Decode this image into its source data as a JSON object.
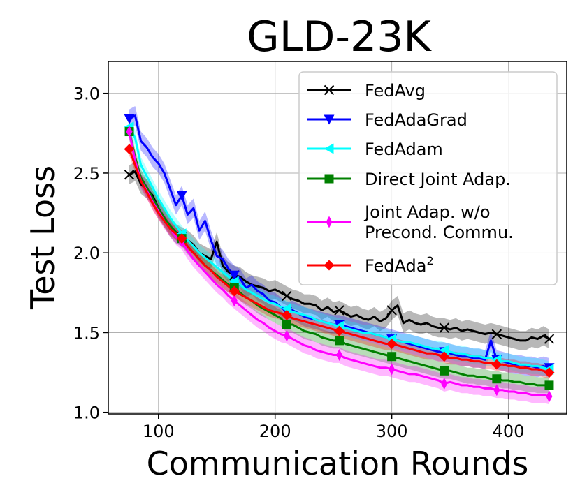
{
  "chart_data": {
    "type": "line",
    "title": "GLD-23K",
    "xlabel": "Communication Rounds",
    "ylabel": "Test Loss",
    "xlim": [
      57,
      450
    ],
    "ylim": [
      0.99,
      3.2
    ],
    "xticks": [
      100,
      200,
      300,
      400
    ],
    "yticks": [
      1.0,
      1.5,
      2.0,
      2.5,
      3.0
    ],
    "xtick_labels": [
      "100",
      "200",
      "300",
      "400"
    ],
    "ytick_labels": [
      "1.0",
      "1.5",
      "2.0",
      "2.5",
      "3.0"
    ],
    "grid": true,
    "legend_position": "top-right",
    "series": [
      {
        "name": "FedAvg",
        "color": "#000000",
        "marker": "x",
        "x": [
          75,
          80,
          85,
          90,
          95,
          100,
          105,
          110,
          115,
          120,
          125,
          130,
          135,
          140,
          145,
          150,
          155,
          160,
          165,
          170,
          175,
          180,
          185,
          190,
          195,
          200,
          205,
          210,
          215,
          220,
          225,
          230,
          235,
          240,
          245,
          250,
          255,
          260,
          265,
          270,
          275,
          280,
          285,
          290,
          295,
          300,
          305,
          310,
          315,
          320,
          325,
          330,
          335,
          340,
          345,
          350,
          355,
          360,
          365,
          370,
          375,
          380,
          385,
          390,
          395,
          400,
          405,
          410,
          415,
          420,
          425,
          430,
          435
        ],
        "y": [
          2.49,
          2.51,
          2.43,
          2.4,
          2.36,
          2.28,
          2.22,
          2.16,
          2.12,
          2.1,
          2.08,
          2.05,
          2.0,
          1.98,
          1.96,
          2.07,
          1.92,
          1.88,
          1.86,
          1.85,
          1.82,
          1.8,
          1.79,
          1.78,
          1.76,
          1.77,
          1.75,
          1.73,
          1.71,
          1.7,
          1.68,
          1.68,
          1.67,
          1.64,
          1.66,
          1.63,
          1.64,
          1.62,
          1.6,
          1.61,
          1.59,
          1.58,
          1.6,
          1.57,
          1.59,
          1.64,
          1.67,
          1.56,
          1.58,
          1.56,
          1.55,
          1.56,
          1.54,
          1.53,
          1.53,
          1.52,
          1.53,
          1.51,
          1.52,
          1.51,
          1.5,
          1.49,
          1.5,
          1.49,
          1.48,
          1.47,
          1.46,
          1.45,
          1.45,
          1.47,
          1.46,
          1.48,
          1.46
        ],
        "band": 0.06,
        "marker_x": [
          75,
          120,
          165,
          210,
          255,
          300,
          345,
          390,
          435
        ]
      },
      {
        "name": "FedAdaGrad",
        "color": "#0000ff",
        "marker": "v",
        "x": [
          75,
          80,
          85,
          90,
          95,
          100,
          105,
          110,
          115,
          120,
          125,
          130,
          135,
          140,
          145,
          150,
          155,
          160,
          165,
          170,
          175,
          180,
          185,
          190,
          195,
          200,
          205,
          210,
          215,
          220,
          225,
          230,
          235,
          240,
          245,
          250,
          255,
          260,
          265,
          270,
          275,
          280,
          285,
          290,
          295,
          300,
          305,
          310,
          315,
          320,
          325,
          330,
          335,
          340,
          345,
          350,
          355,
          360,
          365,
          370,
          375,
          380,
          385,
          390,
          395,
          400,
          405,
          410,
          415,
          420,
          425,
          430,
          435
        ],
        "y": [
          2.84,
          2.86,
          2.7,
          2.66,
          2.6,
          2.56,
          2.5,
          2.4,
          2.3,
          2.36,
          2.24,
          2.28,
          2.14,
          2.2,
          2.08,
          1.98,
          1.96,
          1.9,
          1.86,
          1.84,
          1.78,
          1.8,
          1.76,
          1.74,
          1.7,
          1.69,
          1.66,
          1.63,
          1.64,
          1.62,
          1.6,
          1.59,
          1.58,
          1.57,
          1.56,
          1.55,
          1.55,
          1.54,
          1.53,
          1.52,
          1.51,
          1.5,
          1.49,
          1.48,
          1.47,
          1.46,
          1.45,
          1.44,
          1.43,
          1.42,
          1.41,
          1.4,
          1.39,
          1.38,
          1.38,
          1.37,
          1.36,
          1.35,
          1.35,
          1.34,
          1.34,
          1.33,
          1.45,
          1.33,
          1.32,
          1.31,
          1.3,
          1.3,
          1.29,
          1.29,
          1.28,
          1.29,
          1.28
        ],
        "band": 0.06,
        "marker_x": [
          75,
          120,
          165,
          210,
          255,
          300,
          345,
          390,
          435
        ]
      },
      {
        "name": "FedAdam",
        "color": "#00ffff",
        "marker": "<",
        "x": [
          75,
          80,
          85,
          90,
          95,
          100,
          105,
          110,
          115,
          120,
          125,
          130,
          135,
          140,
          145,
          150,
          155,
          160,
          165,
          170,
          175,
          180,
          185,
          190,
          195,
          200,
          205,
          210,
          215,
          220,
          225,
          230,
          235,
          240,
          245,
          250,
          255,
          260,
          265,
          270,
          275,
          280,
          285,
          290,
          295,
          300,
          305,
          310,
          315,
          320,
          325,
          330,
          335,
          340,
          345,
          350,
          355,
          360,
          365,
          370,
          375,
          380,
          385,
          390,
          395,
          400,
          405,
          410,
          415,
          420,
          425,
          430,
          435
        ],
        "y": [
          2.79,
          2.72,
          2.55,
          2.48,
          2.41,
          2.34,
          2.28,
          2.22,
          2.17,
          2.12,
          2.08,
          2.04,
          2.0,
          1.97,
          1.94,
          1.91,
          1.88,
          1.85,
          1.82,
          1.8,
          1.77,
          1.75,
          1.73,
          1.71,
          1.69,
          1.68,
          1.66,
          1.65,
          1.63,
          1.62,
          1.61,
          1.6,
          1.58,
          1.57,
          1.56,
          1.55,
          1.54,
          1.53,
          1.52,
          1.51,
          1.5,
          1.5,
          1.49,
          1.48,
          1.47,
          1.46,
          1.45,
          1.44,
          1.44,
          1.43,
          1.42,
          1.41,
          1.4,
          1.4,
          1.39,
          1.38,
          1.37,
          1.37,
          1.36,
          1.35,
          1.35,
          1.34,
          1.34,
          1.33,
          1.32,
          1.32,
          1.31,
          1.3,
          1.3,
          1.29,
          1.29,
          1.28,
          1.27
        ],
        "band": 0.05,
        "marker_x": [
          75,
          120,
          165,
          210,
          255,
          300,
          345,
          390,
          435
        ]
      },
      {
        "name": "Direct Joint Adap.",
        "color": "#008000",
        "marker": "s",
        "x": [
          75,
          80,
          85,
          90,
          95,
          100,
          105,
          110,
          115,
          120,
          125,
          130,
          135,
          140,
          145,
          150,
          155,
          160,
          165,
          170,
          175,
          180,
          185,
          190,
          195,
          200,
          205,
          210,
          215,
          220,
          225,
          230,
          235,
          240,
          245,
          250,
          255,
          260,
          265,
          270,
          275,
          280,
          285,
          290,
          295,
          300,
          305,
          310,
          315,
          320,
          325,
          330,
          335,
          340,
          345,
          350,
          355,
          360,
          365,
          370,
          375,
          380,
          385,
          390,
          395,
          400,
          405,
          410,
          415,
          420,
          425,
          430,
          435
        ],
        "y": [
          2.76,
          2.6,
          2.47,
          2.41,
          2.34,
          2.28,
          2.22,
          2.17,
          2.13,
          2.09,
          2.04,
          2.0,
          1.96,
          1.92,
          1.89,
          1.86,
          1.83,
          1.8,
          1.78,
          1.75,
          1.72,
          1.7,
          1.67,
          1.65,
          1.63,
          1.61,
          1.59,
          1.55,
          1.55,
          1.53,
          1.51,
          1.5,
          1.49,
          1.47,
          1.46,
          1.45,
          1.45,
          1.43,
          1.42,
          1.41,
          1.4,
          1.39,
          1.38,
          1.37,
          1.36,
          1.35,
          1.34,
          1.33,
          1.32,
          1.31,
          1.3,
          1.29,
          1.28,
          1.27,
          1.26,
          1.26,
          1.25,
          1.24,
          1.23,
          1.23,
          1.22,
          1.22,
          1.21,
          1.21,
          1.2,
          1.2,
          1.19,
          1.19,
          1.18,
          1.18,
          1.17,
          1.17,
          1.17
        ],
        "band": 0.05,
        "marker_x": [
          75,
          120,
          165,
          210,
          255,
          300,
          345,
          390,
          435
        ]
      },
      {
        "name": "Joint Adap. w/o Precond. Commu.",
        "legend_lines": [
          "Joint Adap. w/o",
          "Precond. Commu."
        ],
        "color": "#ff00ff",
        "marker": "d",
        "x": [
          75,
          80,
          85,
          90,
          95,
          100,
          105,
          110,
          115,
          120,
          125,
          130,
          135,
          140,
          145,
          150,
          155,
          160,
          165,
          170,
          175,
          180,
          185,
          190,
          195,
          200,
          205,
          210,
          215,
          220,
          225,
          230,
          235,
          240,
          245,
          250,
          255,
          260,
          265,
          270,
          275,
          280,
          285,
          290,
          295,
          300,
          305,
          310,
          315,
          320,
          325,
          330,
          335,
          340,
          345,
          350,
          355,
          360,
          365,
          370,
          375,
          380,
          385,
          390,
          395,
          400,
          405,
          410,
          415,
          420,
          425,
          430,
          435
        ],
        "y": [
          2.76,
          2.58,
          2.45,
          2.39,
          2.32,
          2.26,
          2.2,
          2.15,
          2.1,
          2.07,
          2.01,
          1.96,
          1.92,
          1.88,
          1.84,
          1.8,
          1.77,
          1.73,
          1.7,
          1.67,
          1.64,
          1.61,
          1.58,
          1.56,
          1.53,
          1.51,
          1.49,
          1.48,
          1.46,
          1.44,
          1.42,
          1.41,
          1.39,
          1.38,
          1.37,
          1.36,
          1.36,
          1.34,
          1.33,
          1.32,
          1.31,
          1.3,
          1.29,
          1.28,
          1.28,
          1.27,
          1.26,
          1.25,
          1.24,
          1.24,
          1.23,
          1.22,
          1.21,
          1.2,
          1.18,
          1.19,
          1.18,
          1.17,
          1.17,
          1.16,
          1.16,
          1.15,
          1.15,
          1.14,
          1.14,
          1.13,
          1.13,
          1.12,
          1.12,
          1.11,
          1.11,
          1.11,
          1.1
        ],
        "band": 0.05,
        "marker_x": [
          75,
          120,
          165,
          210,
          255,
          300,
          345,
          390,
          435
        ]
      },
      {
        "name": "FedAda²",
        "legend_base": "FedAda",
        "legend_sup": "2",
        "color": "#ff0000",
        "marker": "D",
        "x": [
          75,
          80,
          85,
          90,
          95,
          100,
          105,
          110,
          115,
          120,
          125,
          130,
          135,
          140,
          145,
          150,
          155,
          160,
          165,
          170,
          175,
          180,
          185,
          190,
          195,
          200,
          205,
          210,
          215,
          220,
          225,
          230,
          235,
          240,
          245,
          250,
          255,
          260,
          265,
          270,
          275,
          280,
          285,
          290,
          295,
          300,
          305,
          310,
          315,
          320,
          325,
          330,
          335,
          340,
          345,
          350,
          355,
          360,
          365,
          370,
          375,
          380,
          385,
          390,
          395,
          400,
          405,
          410,
          415,
          420,
          425,
          430,
          435
        ],
        "y": [
          2.65,
          2.55,
          2.45,
          2.38,
          2.31,
          2.25,
          2.2,
          2.15,
          2.12,
          2.09,
          2.04,
          2.0,
          1.96,
          1.92,
          1.89,
          1.85,
          1.82,
          1.79,
          1.76,
          1.74,
          1.72,
          1.7,
          1.68,
          1.66,
          1.64,
          1.63,
          1.62,
          1.61,
          1.59,
          1.58,
          1.57,
          1.56,
          1.55,
          1.54,
          1.53,
          1.52,
          1.51,
          1.5,
          1.49,
          1.48,
          1.47,
          1.46,
          1.45,
          1.44,
          1.43,
          1.43,
          1.42,
          1.41,
          1.4,
          1.39,
          1.38,
          1.37,
          1.37,
          1.36,
          1.35,
          1.34,
          1.34,
          1.33,
          1.33,
          1.32,
          1.32,
          1.31,
          1.31,
          1.3,
          1.3,
          1.29,
          1.29,
          1.28,
          1.28,
          1.27,
          1.27,
          1.26,
          1.25
        ],
        "band": 0.04,
        "marker_x": [
          75,
          120,
          165,
          210,
          255,
          300,
          345,
          390,
          435
        ]
      }
    ]
  }
}
